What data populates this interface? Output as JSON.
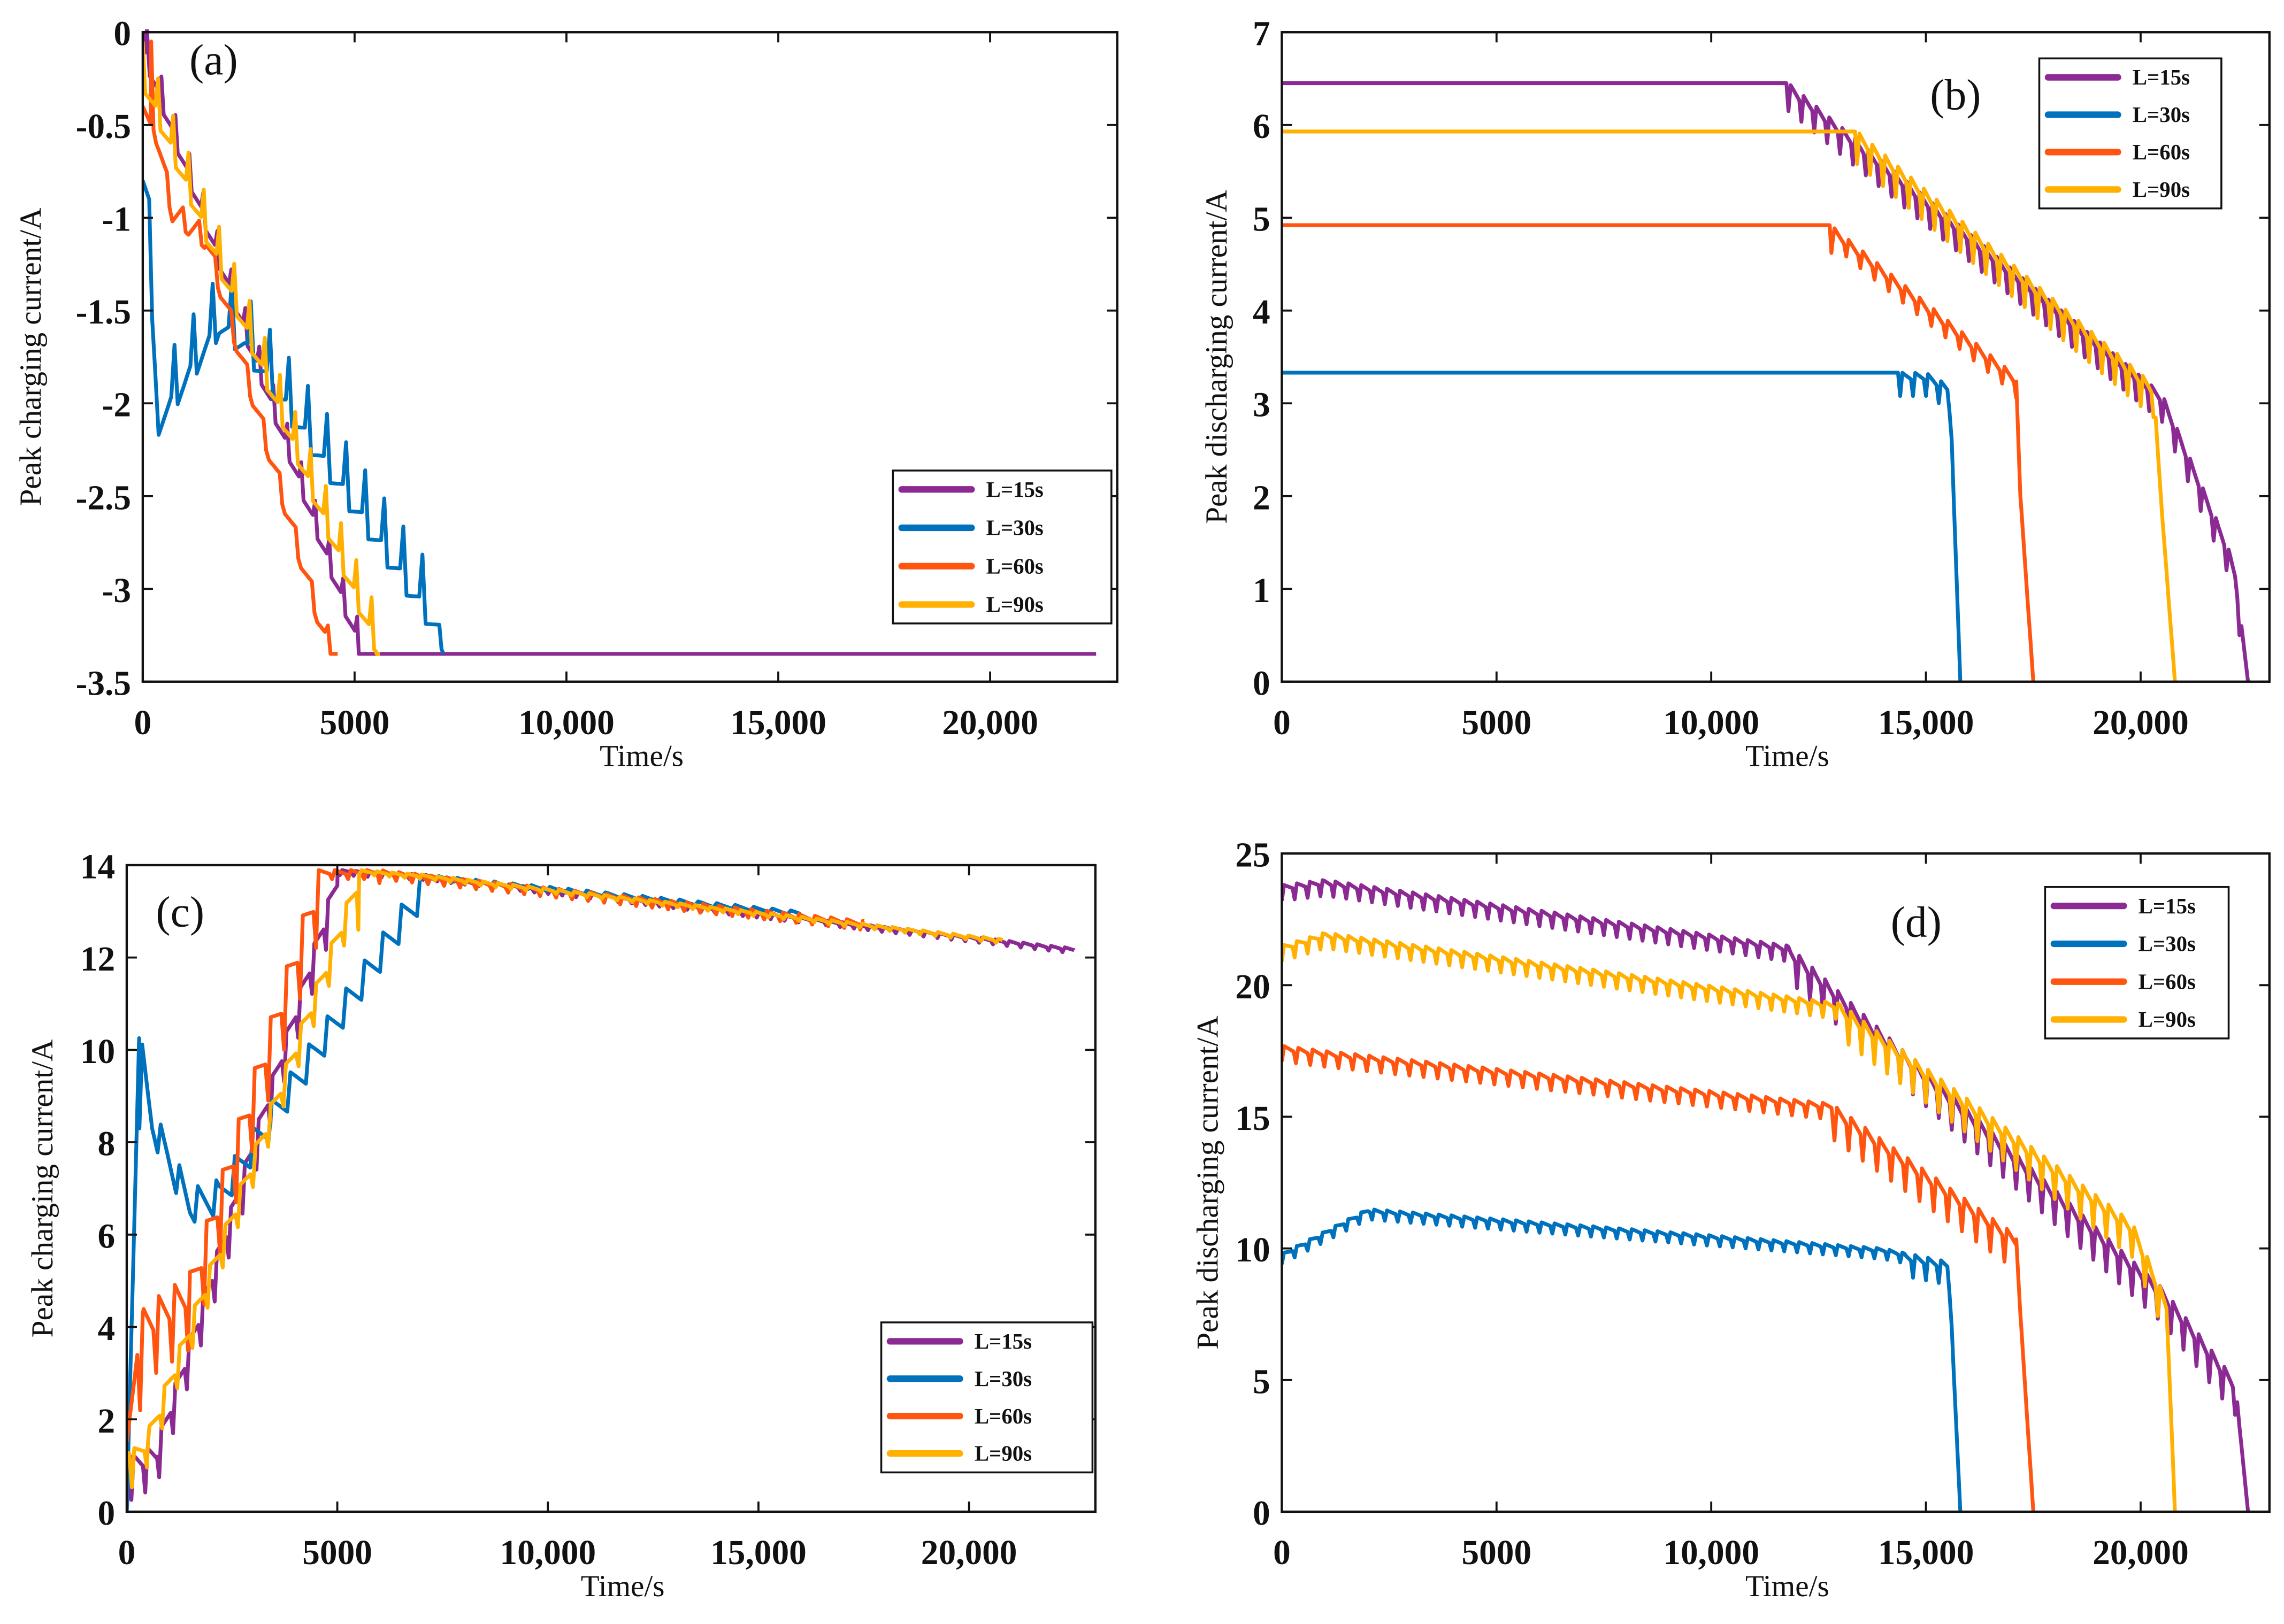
{
  "colors": {
    "L15": "#8B2A92",
    "L30": "#0072BD",
    "L60": "#FF5510",
    "L90": "#FFB000"
  },
  "chart_data": [
    {
      "type": "line",
      "panel_label": "(a)",
      "title": "",
      "xlabel": "Time/s",
      "ylabel": "Peak charging current/A",
      "xlim": [
        0,
        23000
      ],
      "ylim": [
        -3.5,
        0
      ],
      "xticks": [
        0,
        5000,
        10000,
        15000,
        20000
      ],
      "xtick_labels": [
        "0",
        "5000",
        "10,000",
        "15,000",
        "20,000"
      ],
      "yticks": [
        0,
        -0.5,
        -1,
        -1.5,
        -2,
        -2.5,
        -3,
        -3.5
      ],
      "ytick_labels": [
        "0",
        "-0.5",
        "-1",
        "-1.5",
        "-2",
        "-2.5",
        "-3",
        "-3.5"
      ],
      "legend_position": "lower-right",
      "series": [
        {
          "name": "L=15s",
          "color_key": "L15",
          "points": [
            [
              0,
              0
            ],
            [
              100,
              -0.2
            ],
            [
              5100,
              -3.35
            ],
            [
              22500,
              -3.35
            ]
          ],
          "ripple": {
            "from": 100,
            "to": 5100,
            "period": 330,
            "amp": 0.22
          }
        },
        {
          "name": "L=30s",
          "color_key": "L30",
          "points": [
            [
              0,
              -0.8
            ],
            [
              150,
              -0.9
            ],
            [
              300,
              -2.2
            ],
            [
              1800,
              -1.65
            ],
            [
              2400,
              -1.75
            ],
            [
              7000,
              -3.3
            ],
            [
              7100,
              -3.35
            ]
          ],
          "ripple": {
            "from": 300,
            "to": 7000,
            "period": 450,
            "amp": 0.35
          }
        },
        {
          "name": "L=60s",
          "color_key": "L60",
          "points": [
            [
              0,
              -0.4
            ],
            [
              200,
              -0.5
            ],
            [
              700,
              -1.05
            ],
            [
              1500,
              -1.2
            ],
            [
              4300,
              -3.35
            ],
            [
              4600,
              -3.35
            ]
          ],
          "ripple": {
            "from": 200,
            "to": 4400,
            "period": 380,
            "amp": 0.45
          }
        },
        {
          "name": "L=90s",
          "color_key": "L90",
          "points": [
            [
              0,
              -0.3
            ],
            [
              5500,
              -3.35
            ],
            [
              5600,
              -3.35
            ]
          ],
          "ripple": {
            "from": 0,
            "to": 5500,
            "period": 360,
            "amp": 0.25
          }
        }
      ]
    },
    {
      "type": "line",
      "panel_label": "(b)",
      "title": "",
      "xlabel": "Time/s",
      "ylabel": "Peak discharging current/A",
      "xlim": [
        0,
        23000
      ],
      "ylim": [
        0,
        7
      ],
      "xticks": [
        0,
        5000,
        10000,
        15000,
        20000
      ],
      "xtick_labels": [
        "0",
        "5000",
        "10,000",
        "15,000",
        "20,000"
      ],
      "yticks": [
        0,
        1,
        2,
        3,
        4,
        5,
        6,
        7
      ],
      "ytick_labels": [
        "0",
        "1",
        "2",
        "3",
        "4",
        "5",
        "6",
        "7"
      ],
      "legend_position": "top-right",
      "series": [
        {
          "name": "L=15s",
          "color_key": "L15",
          "points": [
            [
              0,
              6.45
            ],
            [
              11800,
              6.45
            ],
            [
              20500,
              3.1
            ],
            [
              22000,
              1.5
            ],
            [
              22200,
              1.2
            ],
            [
              22500,
              0
            ]
          ],
          "ripple": {
            "from": 11800,
            "to": 22300,
            "period": 300,
            "amp": 0.3
          }
        },
        {
          "name": "L=30s",
          "color_key": "L30",
          "points": [
            [
              0,
              3.33
            ],
            [
              15000,
              3.33
            ],
            [
              15500,
              3.2
            ],
            [
              15600,
              2.6
            ],
            [
              15800,
              0
            ]
          ],
          "ripple": {
            "from": 14400,
            "to": 15500,
            "period": 300,
            "amp": 0.25
          }
        },
        {
          "name": "L=60s",
          "color_key": "L60",
          "points": [
            [
              0,
              4.92
            ],
            [
              12800,
              4.92
            ],
            [
              17100,
              3.3
            ],
            [
              17200,
              2.0
            ],
            [
              17500,
              0
            ]
          ],
          "ripple": {
            "from": 12800,
            "to": 17100,
            "period": 330,
            "amp": 0.3
          }
        },
        {
          "name": "L=90s",
          "color_key": "L90",
          "points": [
            [
              0,
              5.93
            ],
            [
              13400,
              5.93
            ],
            [
              20300,
              3.2
            ],
            [
              20500,
              1.8
            ],
            [
              20800,
              0
            ]
          ],
          "ripple": {
            "from": 13400,
            "to": 20400,
            "period": 300,
            "amp": 0.35
          }
        }
      ]
    },
    {
      "type": "line",
      "panel_label": "(c)",
      "title": "",
      "xlabel": "Time/s",
      "ylabel": "Peak charging current/A",
      "xlim": [
        0,
        23000
      ],
      "ylim": [
        0,
        14
      ],
      "xticks": [
        0,
        5000,
        10000,
        15000,
        20000
      ],
      "xtick_labels": [
        "0",
        "5000",
        "10,000",
        "15,000",
        "20,000"
      ],
      "yticks": [
        0,
        2,
        4,
        6,
        8,
        10,
        12,
        14
      ],
      "ytick_labels": [
        "0",
        "2",
        "4",
        "6",
        "8",
        "10",
        "12",
        "14"
      ],
      "legend_position": "lower-right",
      "series": [
        {
          "name": "L=15s",
          "color_key": "L15",
          "points": [
            [
              0,
              0
            ],
            [
              80,
              1.2
            ],
            [
              700,
              1.5
            ],
            [
              5000,
              13.9
            ],
            [
              7000,
              13.8
            ],
            [
              22500,
              12.2
            ]
          ],
          "ripple": {
            "from": 100,
            "to": 22500,
            "period": 330,
            "amp": 1.2,
            "taper_after": 5000
          }
        },
        {
          "name": "L=30s",
          "color_key": "L30",
          "points": [
            [
              0,
              0
            ],
            [
              300,
              10.5
            ],
            [
              600,
              8.8
            ],
            [
              1500,
              7.0
            ],
            [
              2200,
              7.2
            ],
            [
              7000,
              13.8
            ],
            [
              16000,
              13.0
            ]
          ],
          "ripple": {
            "from": 300,
            "to": 16000,
            "period": 440,
            "amp": 2.2,
            "taper_after": 7000
          }
        },
        {
          "name": "L=60s",
          "color_key": "L60",
          "points": [
            [
              0,
              1.5
            ],
            [
              400,
              4.5
            ],
            [
              1500,
              5.2
            ],
            [
              4500,
              13.9
            ],
            [
              6000,
              13.9
            ],
            [
              17500,
              12.8
            ]
          ],
          "ripple": {
            "from": 300,
            "to": 17500,
            "period": 380,
            "amp": 2.4,
            "taper_after": 4500
          }
        },
        {
          "name": "L=90s",
          "color_key": "L90",
          "points": [
            [
              0,
              1.2
            ],
            [
              500,
              1.8
            ],
            [
              5500,
              13.9
            ],
            [
              7000,
              13.8
            ],
            [
              20800,
              12.4
            ]
          ],
          "ripple": {
            "from": 100,
            "to": 20800,
            "period": 360,
            "amp": 1.3,
            "taper_after": 5500
          }
        }
      ]
    },
    {
      "type": "line",
      "panel_label": "(d)",
      "title": "",
      "xlabel": "Time/s",
      "ylabel": "Peak discharging current/A",
      "xlim": [
        0,
        23000
      ],
      "ylim": [
        0,
        25
      ],
      "xticks": [
        0,
        5000,
        10000,
        15000,
        20000
      ],
      "xtick_labels": [
        "0",
        "5000",
        "10,000",
        "15,000",
        "20,000"
      ],
      "yticks": [
        0,
        5,
        10,
        15,
        20,
        25
      ],
      "ytick_labels": [
        "0",
        "5",
        "10",
        "15",
        "20",
        "25"
      ],
      "legend_position": "top-right",
      "series": [
        {
          "name": "L=15s",
          "color_key": "L15",
          "points": [
            [
              0,
              23.8
            ],
            [
              1000,
              24.0
            ],
            [
              11800,
              21.5
            ],
            [
              20500,
              8.5
            ],
            [
              22200,
              5.0
            ],
            [
              22500,
              0
            ]
          ],
          "ripple": {
            "from": 0,
            "to": 22300,
            "period": 300,
            "amp": 0.6,
            "boost_after": 11800
          }
        },
        {
          "name": "L=30s",
          "color_key": "L30",
          "points": [
            [
              0,
              9.8
            ],
            [
              2000,
              11.5
            ],
            [
              14000,
              10.0
            ],
            [
              15500,
              9.5
            ],
            [
              15600,
              7.0
            ],
            [
              15800,
              0
            ]
          ],
          "ripple": {
            "from": 0,
            "to": 15500,
            "period": 300,
            "amp": 0.4,
            "boost_after": 14500
          }
        },
        {
          "name": "L=60s",
          "color_key": "L60",
          "points": [
            [
              0,
              17.7
            ],
            [
              1000,
              17.5
            ],
            [
              12800,
              15.5
            ],
            [
              17100,
              10.5
            ],
            [
              17200,
              7.5
            ],
            [
              17500,
              0
            ]
          ],
          "ripple": {
            "from": 0,
            "to": 17100,
            "period": 330,
            "amp": 0.6,
            "boost_after": 12800
          }
        },
        {
          "name": "L=90s",
          "color_key": "L90",
          "points": [
            [
              0,
              21.5
            ],
            [
              1000,
              22.0
            ],
            [
              13000,
              19.3
            ],
            [
              19800,
              11.0
            ],
            [
              20600,
              8.0
            ],
            [
              20800,
              0
            ]
          ],
          "ripple": {
            "from": 0,
            "to": 20600,
            "period": 300,
            "amp": 0.6,
            "boost_after": 13000
          }
        }
      ]
    }
  ]
}
